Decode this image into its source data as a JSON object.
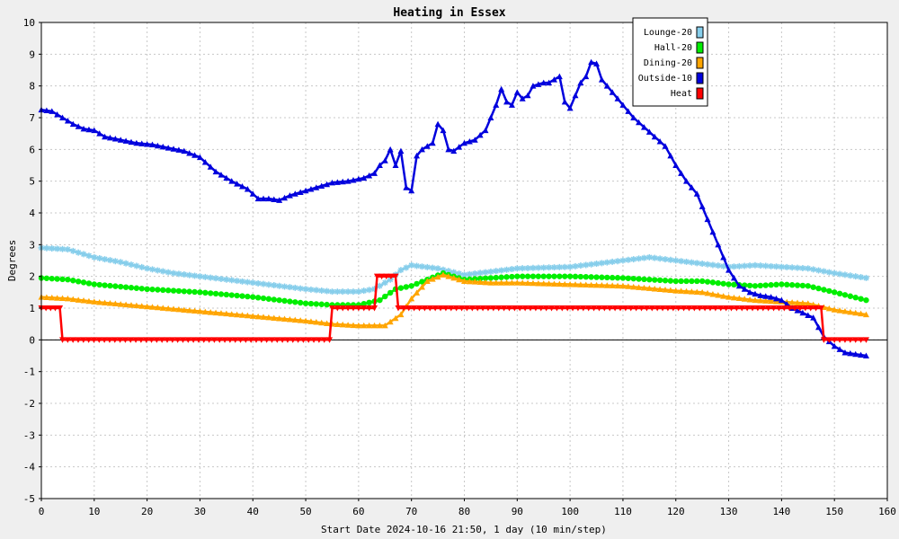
{
  "chart_data": {
    "type": "line",
    "title": "Heating in Essex",
    "xlabel": "Start Date 2024-10-16 21:50, 1 day (10 min/step)",
    "ylabel": "Degrees",
    "xlim": [
      0,
      160
    ],
    "ylim": [
      -5,
      10
    ],
    "xticks": [
      0,
      10,
      20,
      30,
      40,
      50,
      60,
      70,
      80,
      90,
      100,
      110,
      120,
      130,
      140,
      150,
      160
    ],
    "yticks": [
      -5,
      -4,
      -3,
      -2,
      -1,
      0,
      1,
      2,
      3,
      4,
      5,
      6,
      7,
      8,
      9,
      10
    ],
    "grid": true,
    "legend_position": "top-right",
    "series": [
      {
        "name": "Lounge-20",
        "color": "#87ceeb",
        "marker": "star",
        "points": [
          [
            0,
            2.9
          ],
          [
            5,
            2.85
          ],
          [
            10,
            2.6
          ],
          [
            15,
            2.45
          ],
          [
            20,
            2.25
          ],
          [
            25,
            2.1
          ],
          [
            30,
            2.0
          ],
          [
            35,
            1.9
          ],
          [
            40,
            1.8
          ],
          [
            45,
            1.7
          ],
          [
            50,
            1.6
          ],
          [
            55,
            1.52
          ],
          [
            60,
            1.52
          ],
          [
            63,
            1.6
          ],
          [
            66,
            1.9
          ],
          [
            68,
            2.2
          ],
          [
            70,
            2.35
          ],
          [
            75,
            2.25
          ],
          [
            80,
            2.05
          ],
          [
            85,
            2.15
          ],
          [
            90,
            2.25
          ],
          [
            100,
            2.3
          ],
          [
            110,
            2.5
          ],
          [
            115,
            2.6
          ],
          [
            120,
            2.5
          ],
          [
            125,
            2.4
          ],
          [
            130,
            2.3
          ],
          [
            135,
            2.35
          ],
          [
            140,
            2.3
          ],
          [
            145,
            2.25
          ],
          [
            150,
            2.1
          ],
          [
            156,
            1.95
          ]
        ]
      },
      {
        "name": "Hall-20",
        "color": "#00ee00",
        "marker": "circle",
        "points": [
          [
            0,
            1.95
          ],
          [
            5,
            1.9
          ],
          [
            10,
            1.75
          ],
          [
            20,
            1.6
          ],
          [
            30,
            1.5
          ],
          [
            40,
            1.35
          ],
          [
            50,
            1.15
          ],
          [
            55,
            1.1
          ],
          [
            60,
            1.1
          ],
          [
            64,
            1.25
          ],
          [
            67,
            1.6
          ],
          [
            70,
            1.7
          ],
          [
            73,
            1.9
          ],
          [
            76,
            2.1
          ],
          [
            80,
            1.9
          ],
          [
            85,
            1.95
          ],
          [
            90,
            2.0
          ],
          [
            100,
            2.0
          ],
          [
            110,
            1.95
          ],
          [
            120,
            1.85
          ],
          [
            125,
            1.85
          ],
          [
            130,
            1.75
          ],
          [
            135,
            1.7
          ],
          [
            140,
            1.75
          ],
          [
            145,
            1.7
          ],
          [
            150,
            1.5
          ],
          [
            156,
            1.25
          ]
        ]
      },
      {
        "name": "Dining-20",
        "color": "#ffa500",
        "marker": "triangle-up",
        "points": [
          [
            0,
            1.35
          ],
          [
            5,
            1.3
          ],
          [
            10,
            1.2
          ],
          [
            20,
            1.05
          ],
          [
            30,
            0.9
          ],
          [
            40,
            0.75
          ],
          [
            50,
            0.6
          ],
          [
            55,
            0.5
          ],
          [
            60,
            0.45
          ],
          [
            65,
            0.45
          ],
          [
            68,
            0.8
          ],
          [
            70,
            1.3
          ],
          [
            73,
            1.85
          ],
          [
            76,
            2.05
          ],
          [
            80,
            1.85
          ],
          [
            85,
            1.8
          ],
          [
            90,
            1.8
          ],
          [
            100,
            1.75
          ],
          [
            110,
            1.7
          ],
          [
            120,
            1.55
          ],
          [
            125,
            1.5
          ],
          [
            130,
            1.35
          ],
          [
            135,
            1.25
          ],
          [
            140,
            1.2
          ],
          [
            145,
            1.15
          ],
          [
            150,
            0.95
          ],
          [
            156,
            0.8
          ]
        ]
      },
      {
        "name": "Outside-10",
        "color": "#0000dd",
        "marker": "triangle-up",
        "points": [
          [
            0,
            7.25
          ],
          [
            2,
            7.2
          ],
          [
            4,
            7.0
          ],
          [
            6,
            6.8
          ],
          [
            8,
            6.65
          ],
          [
            10,
            6.6
          ],
          [
            12,
            6.4
          ],
          [
            15,
            6.3
          ],
          [
            18,
            6.2
          ],
          [
            21,
            6.15
          ],
          [
            24,
            6.05
          ],
          [
            27,
            5.95
          ],
          [
            30,
            5.75
          ],
          [
            33,
            5.3
          ],
          [
            36,
            5.0
          ],
          [
            39,
            4.75
          ],
          [
            41,
            4.45
          ],
          [
            43,
            4.45
          ],
          [
            45,
            4.4
          ],
          [
            47,
            4.55
          ],
          [
            50,
            4.7
          ],
          [
            53,
            4.85
          ],
          [
            55,
            4.95
          ],
          [
            58,
            5.0
          ],
          [
            61,
            5.1
          ],
          [
            63,
            5.25
          ],
          [
            64,
            5.5
          ],
          [
            65,
            5.65
          ],
          [
            66,
            6.0
          ],
          [
            67,
            5.5
          ],
          [
            68,
            5.95
          ],
          [
            69,
            4.8
          ],
          [
            70,
            4.7
          ],
          [
            71,
            5.8
          ],
          [
            72,
            6.0
          ],
          [
            74,
            6.2
          ],
          [
            75,
            6.8
          ],
          [
            76,
            6.6
          ],
          [
            77,
            6.0
          ],
          [
            78,
            5.95
          ],
          [
            80,
            6.2
          ],
          [
            82,
            6.3
          ],
          [
            84,
            6.6
          ],
          [
            86,
            7.4
          ],
          [
            87,
            7.9
          ],
          [
            88,
            7.5
          ],
          [
            89,
            7.4
          ],
          [
            90,
            7.8
          ],
          [
            91,
            7.6
          ],
          [
            92,
            7.7
          ],
          [
            93,
            8.0
          ],
          [
            95,
            8.1
          ],
          [
            96,
            8.1
          ],
          [
            98,
            8.3
          ],
          [
            99,
            7.5
          ],
          [
            100,
            7.3
          ],
          [
            101,
            7.7
          ],
          [
            102,
            8.1
          ],
          [
            103,
            8.3
          ],
          [
            104,
            8.75
          ],
          [
            105,
            8.7
          ],
          [
            106,
            8.2
          ],
          [
            108,
            7.8
          ],
          [
            110,
            7.4
          ],
          [
            112,
            7.0
          ],
          [
            114,
            6.7
          ],
          [
            116,
            6.4
          ],
          [
            118,
            6.1
          ],
          [
            120,
            5.5
          ],
          [
            122,
            5.0
          ],
          [
            124,
            4.6
          ],
          [
            126,
            3.8
          ],
          [
            128,
            3.0
          ],
          [
            130,
            2.2
          ],
          [
            132,
            1.7
          ],
          [
            134,
            1.5
          ],
          [
            136,
            1.4
          ],
          [
            138,
            1.35
          ],
          [
            140,
            1.25
          ],
          [
            142,
            1.0
          ],
          [
            144,
            0.85
          ],
          [
            146,
            0.7
          ],
          [
            148,
            0.1
          ],
          [
            150,
            -0.2
          ],
          [
            152,
            -0.4
          ],
          [
            154,
            -0.45
          ],
          [
            156,
            -0.5
          ]
        ]
      },
      {
        "name": "Heat",
        "color": "#ff0000",
        "marker": "triangle-down",
        "points": [
          [
            0,
            1
          ],
          [
            3.5,
            1
          ],
          [
            4,
            0
          ],
          [
            54.5,
            0
          ],
          [
            55,
            1
          ],
          [
            63,
            1
          ],
          [
            63.5,
            2
          ],
          [
            67,
            2
          ],
          [
            67.5,
            1
          ],
          [
            147.5,
            1
          ],
          [
            148,
            0
          ],
          [
            156,
            0
          ]
        ]
      }
    ]
  }
}
